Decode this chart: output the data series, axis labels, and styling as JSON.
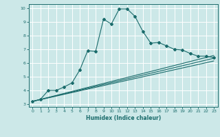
{
  "xlabel": "Humidex (Indice chaleur)",
  "xlim": [
    -0.5,
    23.5
  ],
  "ylim": [
    2.8,
    10.3
  ],
  "xticks": [
    0,
    1,
    2,
    3,
    4,
    5,
    6,
    7,
    8,
    9,
    10,
    11,
    12,
    13,
    14,
    15,
    16,
    17,
    18,
    19,
    20,
    21,
    22,
    23
  ],
  "yticks": [
    3,
    4,
    5,
    6,
    7,
    8,
    9,
    10
  ],
  "bg_color": "#cce8e8",
  "grid_color": "#ffffff",
  "line_color": "#1a6b6b",
  "line1_x": [
    0,
    1,
    2,
    3,
    4,
    5,
    6,
    7,
    8,
    9,
    10,
    11,
    12,
    13,
    14,
    15,
    16,
    17,
    18,
    19,
    20,
    21,
    22,
    23
  ],
  "line1_y": [
    3.2,
    3.35,
    4.0,
    4.0,
    4.25,
    4.55,
    5.5,
    6.9,
    6.85,
    9.2,
    8.85,
    9.95,
    9.95,
    9.4,
    8.3,
    7.45,
    7.5,
    7.25,
    7.0,
    6.95,
    6.7,
    6.5,
    6.5,
    6.4
  ],
  "line2_x": [
    0,
    23
  ],
  "line2_y": [
    3.2,
    6.15
  ],
  "line3_x": [
    0,
    23
  ],
  "line3_y": [
    3.2,
    6.35
  ],
  "line4_x": [
    0,
    23
  ],
  "line4_y": [
    3.2,
    6.55
  ]
}
